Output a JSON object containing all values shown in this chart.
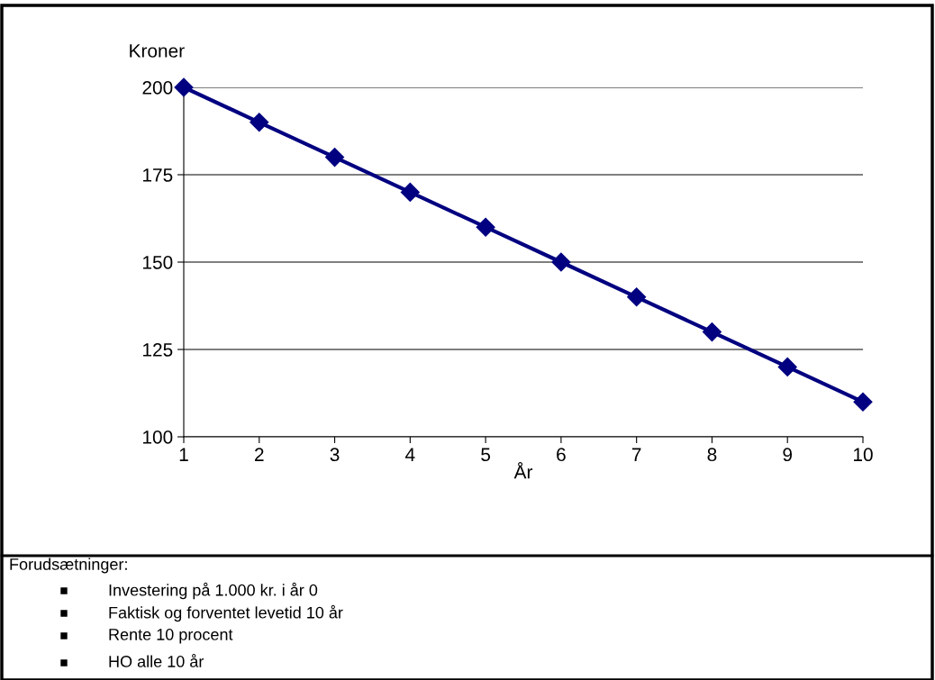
{
  "chart_data": {
    "type": "line",
    "xlabel": "År",
    "ylabel": "Kroner",
    "categories": [
      "1",
      "2",
      "3",
      "4",
      "5",
      "6",
      "7",
      "8",
      "9",
      "10"
    ],
    "series": [
      {
        "color": "#000080",
        "values": [
          200,
          190,
          180,
          170,
          160,
          150,
          140,
          130,
          120,
          110
        ]
      }
    ],
    "ylim": [
      100,
      200
    ],
    "yticks": [
      100,
      125,
      150,
      175,
      200
    ],
    "grid": "y",
    "marker": "diamond",
    "line_style": "solid",
    "legend": false,
    "annotations": [
      "Forudsætninger:",
      "Investering på 1.000 kr. i år 0",
      "Faktisk og forventet levetid 10 år",
      "Rente 10 procent",
      "HO alle 10 år"
    ]
  }
}
